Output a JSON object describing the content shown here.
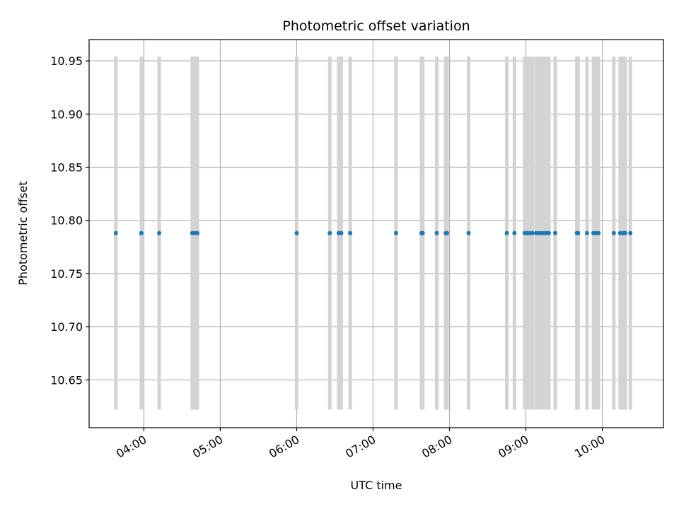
{
  "chart_data": {
    "type": "scatter",
    "title": "Photometric offset variation",
    "xlabel": "UTC time",
    "ylabel": "Photometric offset",
    "x_axis_type": "time",
    "xlim": [
      "03:17",
      "10:48"
    ],
    "xticks": [
      "04:00",
      "05:00",
      "06:00",
      "07:00",
      "08:00",
      "09:00",
      "10:00"
    ],
    "ylim": [
      10.605,
      10.97
    ],
    "yticks": [
      10.65,
      10.7,
      10.75,
      10.8,
      10.85,
      10.9,
      10.95
    ],
    "ytick_labels": [
      "10.65",
      "10.70",
      "10.75",
      "10.80",
      "10.85",
      "10.90",
      "10.95"
    ],
    "grid": true,
    "series": [
      {
        "color": "#1f77b4",
        "errorbar_color": "#d3d3d3",
        "y_value": 10.788,
        "y_error": 0.166,
        "x": [
          "03:38",
          "03:58",
          "04:12",
          "04:38",
          "04:40",
          "04:42",
          "06:00",
          "06:26",
          "06:33",
          "06:35",
          "06:42",
          "07:18",
          "07:38",
          "07:39",
          "07:50",
          "07:57",
          "07:58",
          "08:15",
          "08:45",
          "08:51",
          "08:59",
          "09:01",
          "09:03",
          "09:05",
          "09:08",
          "09:10",
          "09:12",
          "09:14",
          "09:16",
          "09:18",
          "09:23",
          "09:40",
          "09:41",
          "09:48",
          "09:53",
          "09:55",
          "09:57",
          "10:09",
          "10:14",
          "10:16",
          "10:17",
          "10:18",
          "10:22"
        ]
      }
    ]
  }
}
